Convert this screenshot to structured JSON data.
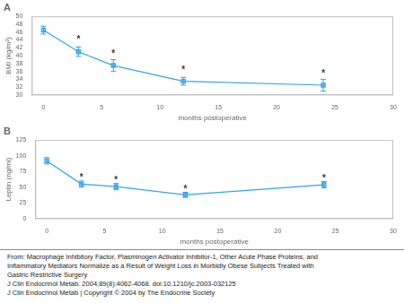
{
  "chart_data": [
    {
      "type": "line",
      "title": "A",
      "x": [
        0,
        3,
        6,
        12,
        24
      ],
      "values": [
        46.5,
        41.0,
        37.5,
        33.5,
        32.5
      ],
      "yerr": [
        1.0,
        1.2,
        1.5,
        1.0,
        1.5
      ],
      "marker": "square",
      "line_style": "solid",
      "xlabel": "months postoperative",
      "ylabel": "BMI (kg/m²)",
      "xlim": [
        -1,
        30
      ],
      "xticks": [
        0,
        5,
        10,
        15,
        20,
        25,
        30
      ],
      "ylim": [
        30,
        50
      ],
      "yticks": [
        30,
        32,
        34,
        36,
        38,
        40,
        42,
        44,
        46,
        48,
        50
      ],
      "grid": false,
      "legend": false,
      "annotations": [
        {
          "x": 3,
          "y": 43.8,
          "text": "*"
        },
        {
          "x": 6,
          "y": 40.2,
          "text": "*"
        },
        {
          "x": 12,
          "y": 36.0,
          "text": "*"
        },
        {
          "x": 24,
          "y": 35.2,
          "text": "*"
        }
      ]
    },
    {
      "type": "line",
      "title": "B",
      "x": [
        0,
        3,
        6,
        12,
        24
      ],
      "values": [
        92.0,
        55.0,
        51.0,
        38.0,
        54.0
      ],
      "yerr": [
        5.0,
        5.0,
        5.0,
        4.0,
        5.0
      ],
      "marker": "square",
      "line_style": "solid",
      "xlabel": "months postoperative",
      "ylabel": "Leptin (ng/ml)",
      "xlim": [
        -1,
        30
      ],
      "xticks": [
        0,
        5,
        10,
        15,
        20,
        25,
        30
      ],
      "ylim": [
        0,
        125
      ],
      "yticks": [
        0,
        25,
        50,
        75,
        100,
        125
      ],
      "grid": false,
      "legend": false,
      "annotations": [
        {
          "x": 3,
          "y": 63.0,
          "text": "*"
        },
        {
          "x": 6,
          "y": 59.0,
          "text": "*"
        },
        {
          "x": 12,
          "y": 45.0,
          "text": "*"
        },
        {
          "x": 24,
          "y": 62.0,
          "text": "*"
        }
      ]
    }
  ],
  "caption": [
    "From: Macrophage Inhibitory Factor, Plasminogen Activator Inhibitor-1, Other Acute Phase Proteins, and",
    "Inflammatory Mediators Normalize as a Result of Weight Loss in Morbidly Obese Subjects Treated with",
    "Gastric Restrictive Surgery",
    "J Clin Endocrinol Metab. 2004;89(8):4062-4068. doi:10.1210/jc.2003-032125",
    "J Clin Endocrinol Metab | Copyright © 2004 by The Endocrine Society"
  ]
}
